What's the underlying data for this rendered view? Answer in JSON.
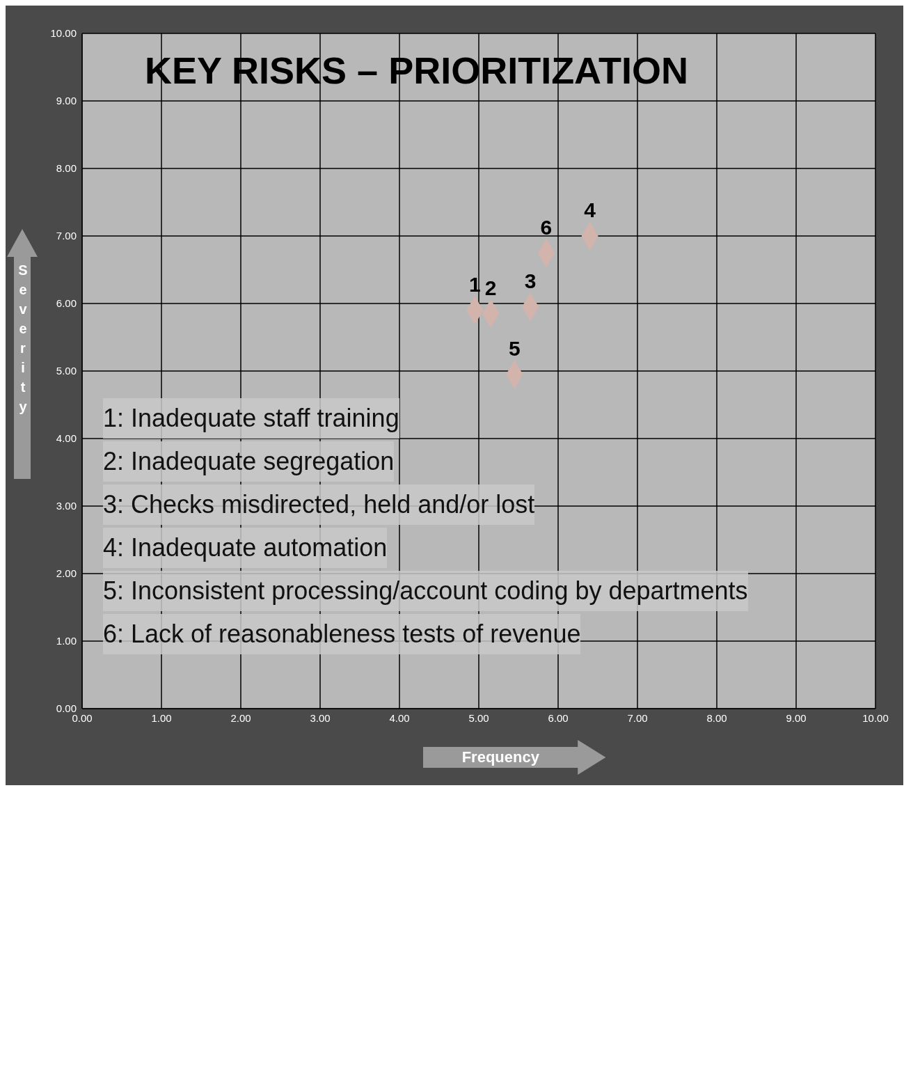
{
  "chart_data": {
    "type": "scatter",
    "title": "KEY RISKS – PRIORITIZATION",
    "xlabel": "Frequency",
    "ylabel": "Severity",
    "xlim": [
      0,
      10
    ],
    "ylim": [
      0,
      10
    ],
    "xticks": [
      {
        "value": 0,
        "label": "0.00"
      },
      {
        "value": 1,
        "label": "1.00"
      },
      {
        "value": 2,
        "label": "2.00"
      },
      {
        "value": 3,
        "label": "3.00"
      },
      {
        "value": 4,
        "label": "4.00"
      },
      {
        "value": 5,
        "label": "5.00"
      },
      {
        "value": 6,
        "label": "6.00"
      },
      {
        "value": 7,
        "label": "7.00"
      },
      {
        "value": 8,
        "label": "8.00"
      },
      {
        "value": 9,
        "label": "9.00"
      },
      {
        "value": 10,
        "label": "10.00"
      }
    ],
    "yticks": [
      {
        "value": 0,
        "label": "0.00"
      },
      {
        "value": 1,
        "label": "1.00"
      },
      {
        "value": 2,
        "label": "2.00"
      },
      {
        "value": 3,
        "label": "3.00"
      },
      {
        "value": 4,
        "label": "4.00"
      },
      {
        "value": 5,
        "label": "5.00"
      },
      {
        "value": 6,
        "label": "6.00"
      },
      {
        "value": 7,
        "label": "7.00"
      },
      {
        "value": 8,
        "label": "8.00"
      },
      {
        "value": 9,
        "label": "9.00"
      },
      {
        "value": 10,
        "label": "10.00"
      }
    ],
    "grid": true,
    "marker": "diamond",
    "series": [
      {
        "name": "1",
        "color": "#d2b4ad",
        "x": [
          4.95
        ],
        "values": [
          5.9
        ]
      },
      {
        "name": "2",
        "color": "#d2b4ad",
        "x": [
          5.15
        ],
        "values": [
          5.85
        ]
      },
      {
        "name": "3",
        "color": "#d2b4ad",
        "x": [
          5.65
        ],
        "values": [
          5.95
        ]
      },
      {
        "name": "4",
        "color": "#d2b4ad",
        "x": [
          6.4
        ],
        "values": [
          7.0
        ]
      },
      {
        "name": "5",
        "color": "#d2b4ad",
        "x": [
          5.45
        ],
        "values": [
          4.95
        ]
      },
      {
        "name": "6",
        "color": "#d2b4ad",
        "x": [
          5.85
        ],
        "values": [
          6.75
        ]
      }
    ],
    "annotations": [
      "1: Inadequate staff training",
      "2: Inadequate segregation",
      "3: Checks misdirected, held and/or lost",
      "4: Inadequate automation",
      "5: Inconsistent processing/account coding by departments",
      "6: Lack of reasonableness tests of revenue"
    ]
  }
}
